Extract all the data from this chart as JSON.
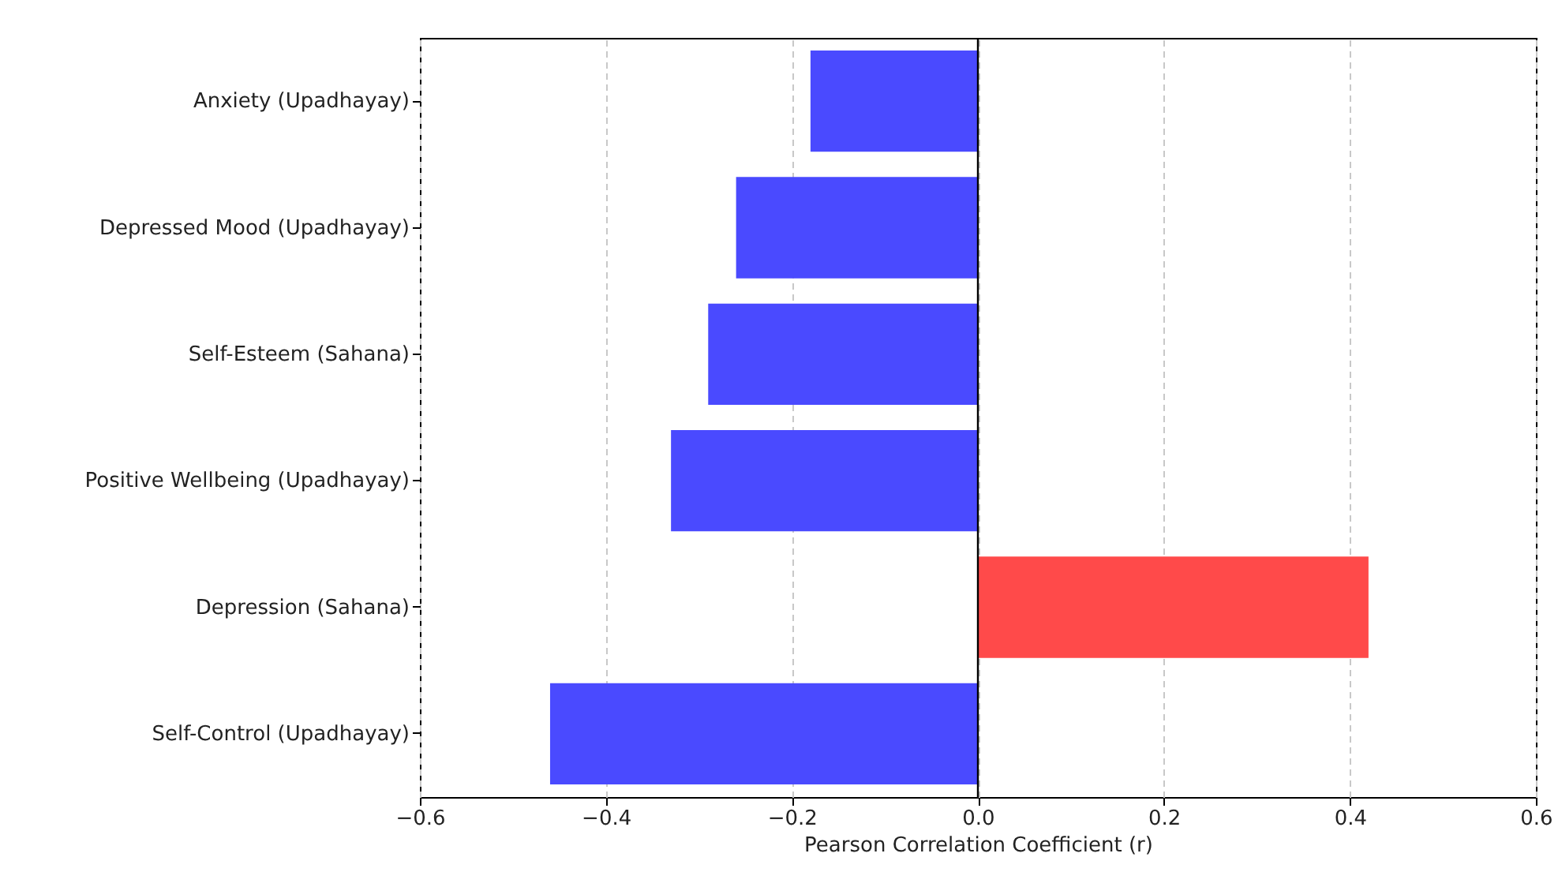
{
  "chart_data": {
    "type": "bar",
    "orientation": "horizontal",
    "xlabel": "Pearson Correlation Coefficient (r)",
    "categories": [
      "Anxiety (Upadhayay)",
      "Depressed Mood (Upadhayay)",
      "Self-Esteem (Sahana)",
      "Positive Wellbeing (Upadhayay)",
      "Depression (Sahana)",
      "Self-Control (Upadhayay)"
    ],
    "values": [
      -0.18,
      -0.26,
      -0.29,
      -0.33,
      0.42,
      -0.46
    ],
    "colors": [
      "#4a4aff",
      "#4a4aff",
      "#4a4aff",
      "#4a4aff",
      "#ff4a4a",
      "#4a4aff"
    ],
    "xlim": [
      -0.6,
      0.6
    ],
    "xticks": [
      {
        "value": -0.6,
        "label": "−0.6"
      },
      {
        "value": -0.4,
        "label": "−0.4"
      },
      {
        "value": -0.2,
        "label": "−0.2"
      },
      {
        "value": 0,
        "label": "0.0"
      },
      {
        "value": 0.2,
        "label": "0.2"
      },
      {
        "value": 0.4,
        "label": "0.4"
      },
      {
        "value": 0.6,
        "label": "0.6"
      }
    ],
    "ref_lines": [
      {
        "axis": "x",
        "value": 0,
        "color": "#000000"
      }
    ],
    "grid": "x"
  }
}
